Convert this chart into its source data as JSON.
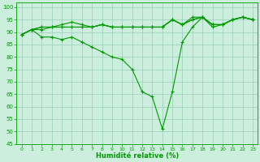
{
  "xlabel": "Humidité relative (%)",
  "background_color": "#cceedd",
  "grid_color": "#99ccbb",
  "line_color": "#009900",
  "xlim": [
    -0.5,
    23.5
  ],
  "ylim": [
    45,
    102
  ],
  "yticks": [
    45,
    50,
    55,
    60,
    65,
    70,
    75,
    80,
    85,
    90,
    95,
    100
  ],
  "xticks": [
    0,
    1,
    2,
    3,
    4,
    5,
    6,
    7,
    8,
    9,
    10,
    11,
    12,
    13,
    14,
    15,
    16,
    17,
    18,
    19,
    20,
    21,
    22,
    23
  ],
  "series": [
    [
      89,
      91,
      91,
      92,
      92,
      92,
      92,
      92,
      93,
      92,
      92,
      92,
      92,
      92,
      92,
      95,
      93,
      95,
      96,
      92,
      93,
      95,
      96,
      95
    ],
    [
      89,
      91,
      92,
      92,
      93,
      94,
      93,
      92,
      93,
      92,
      92,
      92,
      92,
      92,
      92,
      95,
      93,
      95,
      96,
      93,
      93,
      95,
      96,
      95
    ],
    [
      89,
      91,
      92,
      92,
      92,
      92,
      92,
      92,
      93,
      92,
      92,
      92,
      92,
      92,
      92,
      95,
      93,
      96,
      96,
      93,
      93,
      95,
      96,
      95
    ],
    [
      89,
      91,
      88,
      88,
      87,
      88,
      86,
      84,
      82,
      80,
      79,
      75,
      66,
      64,
      51,
      66,
      86,
      92,
      96,
      93,
      93,
      95,
      96,
      95
    ]
  ]
}
